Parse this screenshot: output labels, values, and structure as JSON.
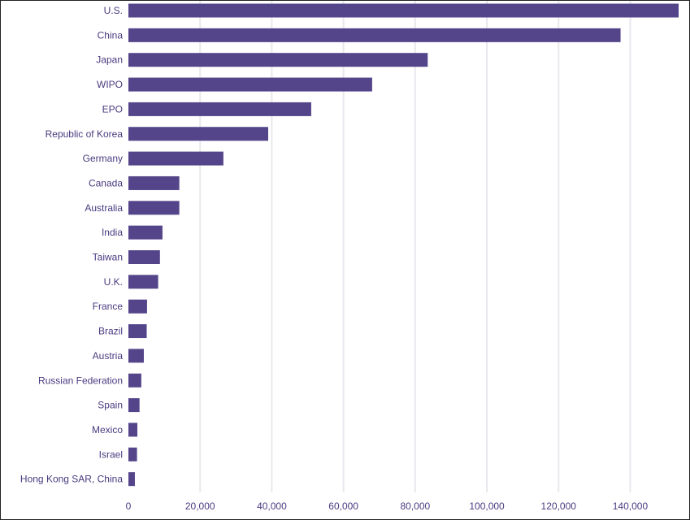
{
  "chart_data": {
    "type": "bar",
    "orientation": "horizontal",
    "title": "",
    "xlabel": "",
    "ylabel": "",
    "categories": [
      "U.S.",
      "China",
      "Japan",
      "WIPO",
      "EPO",
      "Republic of Korea",
      "Germany",
      "Canada",
      "Australia",
      "India",
      "Taiwan",
      "U.K.",
      "France",
      "Brazil",
      "Austria",
      "Russian Federation",
      "Spain",
      "Mexico",
      "Israel",
      "Hong Kong SAR, China"
    ],
    "values": [
      153500,
      137300,
      83500,
      68000,
      51000,
      39000,
      26500,
      14200,
      14200,
      9500,
      8800,
      8300,
      5200,
      5100,
      4300,
      3600,
      3100,
      2500,
      2400,
      1800
    ],
    "xlim": [
      0,
      153500
    ],
    "xticks": [
      0,
      20000,
      40000,
      60000,
      80000,
      100000,
      120000,
      140000
    ],
    "xtick_labels": [
      "0",
      "20,000",
      "40,000",
      "60,000",
      "80,000",
      "100,000",
      "120,000",
      "140,000"
    ],
    "grid": true,
    "colors": {
      "bar": "#54458a",
      "text": "#4a3a80",
      "grid": "#e8e8ee"
    }
  }
}
